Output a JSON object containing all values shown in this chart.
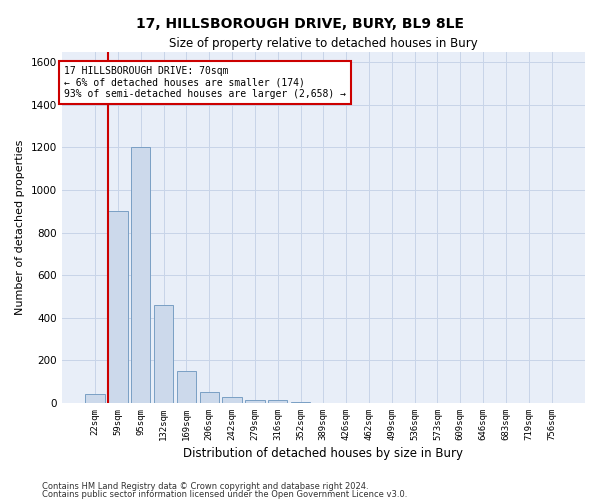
{
  "title": "17, HILLSBOROUGH DRIVE, BURY, BL9 8LE",
  "subtitle": "Size of property relative to detached houses in Bury",
  "xlabel": "Distribution of detached houses by size in Bury",
  "ylabel": "Number of detached properties",
  "footnote1": "Contains HM Land Registry data © Crown copyright and database right 2024.",
  "footnote2": "Contains public sector information licensed under the Open Government Licence v3.0.",
  "annotation_line1": "17 HILLSBOROUGH DRIVE: 70sqm",
  "annotation_line2": "← 6% of detached houses are smaller (174)",
  "annotation_line3": "93% of semi-detached houses are larger (2,658) →",
  "bar_color": "#ccd9eb",
  "bar_edge_color": "#7a9fc4",
  "red_line_color": "#cc0000",
  "grid_color": "#c8d4e8",
  "background_color": "#e8eef8",
  "categories": [
    "22sqm",
    "59sqm",
    "95sqm",
    "132sqm",
    "169sqm",
    "206sqm",
    "242sqm",
    "279sqm",
    "316sqm",
    "352sqm",
    "389sqm",
    "426sqm",
    "462sqm",
    "499sqm",
    "536sqm",
    "573sqm",
    "609sqm",
    "646sqm",
    "683sqm",
    "719sqm",
    "756sqm"
  ],
  "values": [
    40,
    900,
    1200,
    460,
    150,
    50,
    30,
    15,
    15,
    5,
    0,
    0,
    0,
    0,
    0,
    0,
    0,
    0,
    0,
    0,
    0
  ],
  "ylim": [
    0,
    1650
  ],
  "yticks": [
    0,
    200,
    400,
    600,
    800,
    1000,
    1200,
    1400,
    1600
  ],
  "red_line_index": 1
}
